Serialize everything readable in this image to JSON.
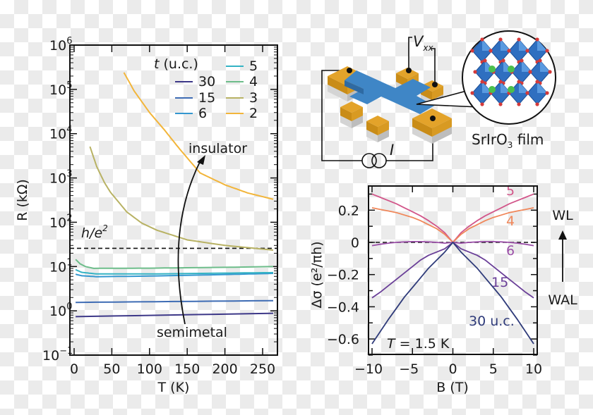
{
  "chart_data": [
    {
      "type": "line",
      "panel": "left",
      "xlabel": "T (K)",
      "ylabel": "R (kΩ)",
      "xlim": [
        -6,
        270
      ],
      "ylim": [
        0.1,
        1000000
      ],
      "yscale": "log",
      "xticks": [
        0,
        50,
        100,
        150,
        200,
        250
      ],
      "yticks_exponents": [
        -1,
        0,
        1,
        2,
        3,
        4,
        5,
        6
      ],
      "grid": false,
      "legend_title": "t (u.c.)",
      "legend_placement": "top-right",
      "reference_line": {
        "label": "h/e²",
        "value": 25.8,
        "style": "dashed"
      },
      "annotations": {
        "insulator": "insulator",
        "semimetal": "semimetal"
      },
      "series": [
        {
          "name": "30",
          "color": "#3d3888",
          "x": [
            2,
            264
          ],
          "y": [
            0.74,
            0.88
          ]
        },
        {
          "name": "15",
          "color": "#3e6cb4",
          "x": [
            2,
            264
          ],
          "y": [
            1.55,
            1.7
          ]
        },
        {
          "name": "6",
          "color": "#3497d0",
          "x": [
            2,
            10,
            30,
            100,
            200,
            264
          ],
          "y": [
            6.7,
            6.2,
            5.9,
            6.1,
            6.6,
            7.0
          ]
        },
        {
          "name": "5",
          "color": "#34b3c4",
          "x": [
            2,
            10,
            30,
            100,
            200,
            264
          ],
          "y": [
            8.5,
            7.4,
            6.8,
            6.8,
            7.1,
            7.3
          ]
        },
        {
          "name": "4",
          "color": "#6dbd8a",
          "x": [
            2,
            8,
            15,
            26,
            100,
            200,
            264
          ],
          "y": [
            14.5,
            11.5,
            10,
            9.1,
            9.2,
            9.6,
            10
          ]
        },
        {
          "name": "3",
          "color": "#b8b264",
          "x": [
            21,
            30,
            40,
            48,
            70,
            90,
            110,
            150,
            200,
            264
          ],
          "y": [
            5100,
            1800,
            800,
            480,
            170,
            95,
            66,
            40,
            30,
            23.5
          ]
        },
        {
          "name": "2",
          "color": "#f2b53a",
          "x": [
            66,
            80,
            100,
            120,
            140,
            167,
            200,
            230,
            264
          ],
          "y": [
            240000,
            90000,
            30000,
            12000,
            4500,
            1300,
            700,
            460,
            330
          ]
        }
      ]
    },
    {
      "type": "line",
      "panel": "right",
      "xlabel": "B (T)",
      "ylabel": "Δσ (e²/πh)",
      "xlim": [
        -10.4,
        10.4
      ],
      "ylim": [
        -0.7,
        0.35
      ],
      "xticks": [
        -10,
        -5,
        0,
        5,
        10
      ],
      "yticks": [
        0.2,
        0,
        -0.2,
        -0.4,
        -0.6
      ],
      "ytick_labels": [
        "0.2",
        "0",
        "−0.2",
        "−0.4",
        "−0.6"
      ],
      "xtick_labels": [
        "−10",
        "−5",
        "0",
        "5",
        "10"
      ],
      "grid": false,
      "reference_line": {
        "value": 0,
        "style": "dashed"
      },
      "condition": "T = 1.5 K",
      "direction_labels": {
        "top": "WL",
        "bottom": "WAL"
      },
      "series": [
        {
          "name": "5",
          "color": "#d2568a",
          "x": [
            0,
            1,
            2,
            3,
            4,
            5,
            6,
            7,
            8,
            9,
            10
          ],
          "y": [
            0,
            0.06,
            0.1,
            0.135,
            0.165,
            0.19,
            0.215,
            0.24,
            0.26,
            0.28,
            0.3
          ]
        },
        {
          "name": "4",
          "color": "#f0875a",
          "x": [
            0,
            1,
            2,
            3,
            4,
            5,
            6,
            7,
            8,
            9,
            10
          ],
          "y": [
            0,
            0.05,
            0.085,
            0.11,
            0.135,
            0.155,
            0.17,
            0.185,
            0.195,
            0.205,
            0.215
          ]
        },
        {
          "name": "6",
          "color": "#9b4fa8",
          "x": [
            0,
            1,
            2,
            3,
            4,
            5,
            6,
            7,
            8,
            9,
            10
          ],
          "y": [
            0,
            -0.005,
            0,
            0.003,
            0.005,
            0.005,
            0.003,
            0,
            -0.005,
            -0.012,
            -0.02
          ]
        },
        {
          "name": "15",
          "color": "#6a3f98",
          "x": [
            0,
            1,
            2,
            3,
            4,
            5,
            6,
            7,
            8,
            9,
            10
          ],
          "y": [
            0,
            -0.04,
            -0.06,
            -0.08,
            -0.11,
            -0.15,
            -0.19,
            -0.23,
            -0.27,
            -0.31,
            -0.345
          ]
        },
        {
          "name": "30 u.c.",
          "color": "#2f3b7a",
          "x": [
            0,
            1,
            2,
            3,
            4,
            5,
            6,
            7,
            8,
            9,
            10
          ],
          "y": [
            0,
            -0.06,
            -0.11,
            -0.16,
            -0.22,
            -0.28,
            -0.34,
            -0.41,
            -0.48,
            -0.555,
            -0.63
          ]
        }
      ]
    }
  ],
  "diagram": {
    "voltage_label": "V",
    "voltage_subscript": "xx",
    "current_label": "I",
    "film_label": "SrIrO",
    "film_subscript": "3",
    "film_suffix": " film",
    "colors": {
      "film": "#3f86c6",
      "contact": "#e3a32a",
      "substrate": "#d4d4d4",
      "octahedron": "#2f6fc0",
      "oxygen": "#d43a3a",
      "sr": "#4cbf4c"
    }
  }
}
